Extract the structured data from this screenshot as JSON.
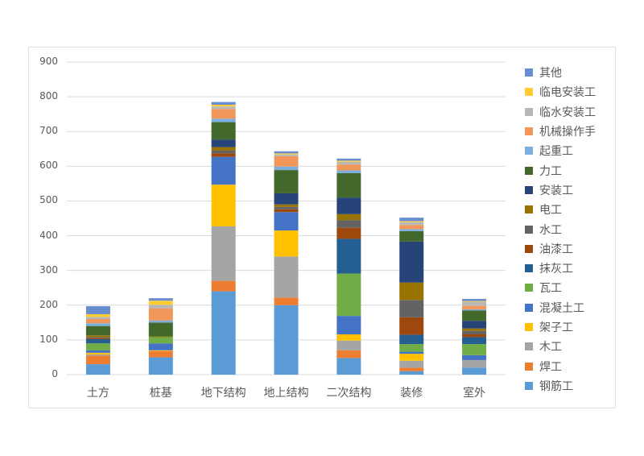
{
  "chart_data": {
    "type": "bar",
    "stacked": true,
    "title": "",
    "xlabel": "",
    "ylabel": "",
    "ylim": [
      0,
      900
    ],
    "yticks": [
      0,
      100,
      200,
      300,
      400,
      500,
      600,
      700,
      800,
      900
    ],
    "grid": true,
    "legend_position": "right",
    "categories": [
      "土方",
      "桩基",
      "地下结构",
      "地上结构",
      "二次结构",
      "装修",
      "室外"
    ],
    "series": [
      {
        "name": "钢筋工",
        "color": "#5B9BD5",
        "values": [
          30,
          50,
          240,
          200,
          48,
          10,
          20
        ]
      },
      {
        "name": "焊工",
        "color": "#ED7D31",
        "values": [
          25,
          18,
          30,
          22,
          22,
          10,
          0
        ]
      },
      {
        "name": "木工",
        "color": "#A5A5A5",
        "values": [
          3,
          0,
          157,
          118,
          28,
          20,
          22
        ]
      },
      {
        "name": "架子工",
        "color": "#FFC000",
        "values": [
          5,
          2,
          120,
          75,
          18,
          20,
          0
        ]
      },
      {
        "name": "混凝土工",
        "color": "#4472C4",
        "values": [
          7,
          20,
          80,
          53,
          53,
          6,
          14
        ]
      },
      {
        "name": "瓦工",
        "color": "#70AD47",
        "values": [
          20,
          18,
          0,
          0,
          122,
          22,
          32
        ]
      },
      {
        "name": "抹灰工",
        "color": "#255E91",
        "values": [
          12,
          0,
          0,
          0,
          100,
          27,
          20
        ]
      },
      {
        "name": "油漆工",
        "color": "#9E480E",
        "values": [
          3,
          0,
          10,
          8,
          32,
          50,
          8
        ]
      },
      {
        "name": "水工",
        "color": "#636363",
        "values": [
          3,
          0,
          8,
          7,
          22,
          50,
          10
        ]
      },
      {
        "name": "电工",
        "color": "#997300",
        "values": [
          5,
          2,
          10,
          7,
          17,
          50,
          7
        ]
      },
      {
        "name": "安装工",
        "color": "#264478",
        "values": [
          0,
          0,
          22,
          32,
          48,
          118,
          22
        ]
      },
      {
        "name": "力工",
        "color": "#43682B",
        "values": [
          27,
          40,
          50,
          67,
          70,
          30,
          30
        ]
      },
      {
        "name": "起重工",
        "color": "#7CAFDD",
        "values": [
          8,
          6,
          10,
          10,
          8,
          6,
          3
        ]
      },
      {
        "name": "机械操作手",
        "color": "#F1975A",
        "values": [
          12,
          35,
          28,
          30,
          17,
          12,
          10
        ]
      },
      {
        "name": "临水安装工",
        "color": "#B7B7B7",
        "values": [
          6,
          10,
          7,
          5,
          8,
          8,
          12
        ]
      },
      {
        "name": "临电安装工",
        "color": "#FFCD33",
        "values": [
          8,
          12,
          5,
          3,
          3,
          3,
          2
        ]
      },
      {
        "name": "其他",
        "color": "#698ED0",
        "values": [
          23,
          7,
          8,
          6,
          6,
          10,
          6
        ]
      }
    ],
    "totals": [
      197,
      220,
      785,
      643,
      622,
      452,
      218
    ]
  },
  "legend_order": [
    "其他",
    "临电安装工",
    "临水安装工",
    "机械操作手",
    "起重工",
    "力工",
    "安装工",
    "电工",
    "水工",
    "油漆工",
    "抹灰工",
    "瓦工",
    "混凝土工",
    "架子工",
    "木工",
    "焊工",
    "钢筋工"
  ],
  "colors": {
    "grid": "#D9D9D9",
    "axis_text": "#595959",
    "frame_border": "#E2E2E2"
  }
}
